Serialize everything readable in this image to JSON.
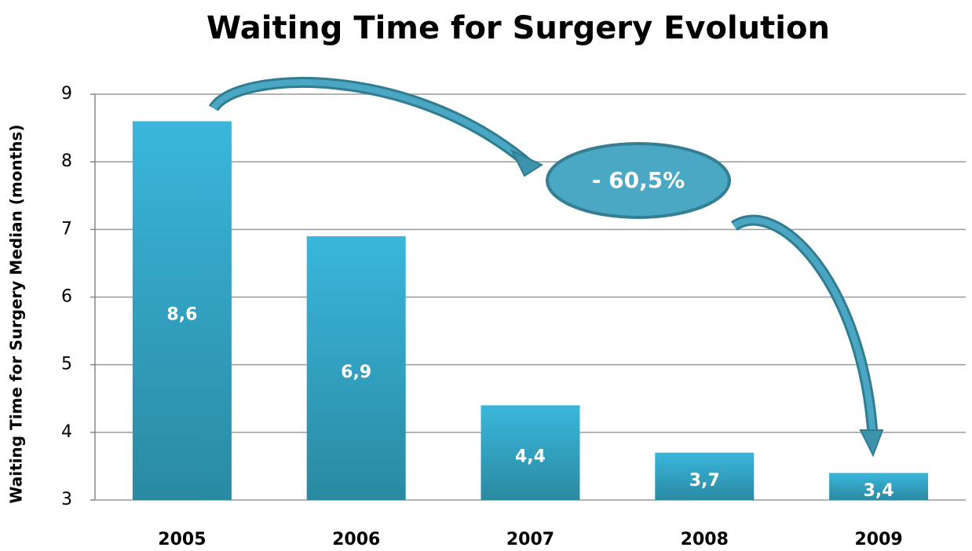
{
  "chart_data": {
    "type": "bar",
    "title": "Waiting Time for Surgery Evolution",
    "ylabel": "Waiting Time for Surgery Median  (months)",
    "categories": [
      "2005",
      "2006",
      "2007",
      "2008",
      "2009"
    ],
    "values": [
      8.6,
      6.9,
      4.4,
      3.7,
      3.4
    ],
    "value_labels": [
      "8,6",
      "6,9",
      "4,4",
      "3,7",
      "3,4"
    ],
    "color": "#36aed2",
    "ylim": [
      3,
      9
    ],
    "yticks": [
      3,
      4,
      5,
      6,
      7,
      8,
      9
    ],
    "grid": true,
    "annotation": "- 60,5%"
  }
}
